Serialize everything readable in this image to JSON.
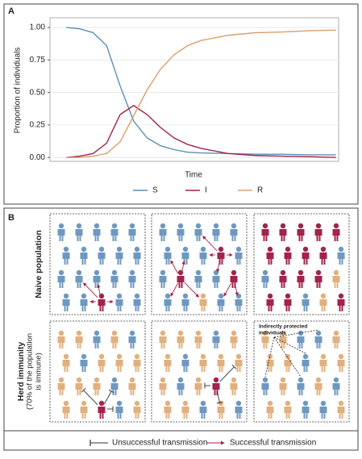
{
  "panels": {
    "a": "A",
    "b": "B"
  },
  "chart_data": {
    "type": "line",
    "ylabel": "Proportion of individuals",
    "xlabel": "Time",
    "x": [
      0,
      5,
      10,
      15,
      20,
      25,
      30,
      35,
      40,
      45,
      50,
      60,
      70,
      80,
      90,
      100
    ],
    "xlim": [
      -6,
      101
    ],
    "ylim": [
      -0.03,
      1.075
    ],
    "yticks": [
      {
        "value": 0,
        "label": "0.00"
      },
      {
        "value": 0.25,
        "label": "0.25"
      },
      {
        "value": 0.5,
        "label": "0.50"
      },
      {
        "value": 0.75,
        "label": "0.75"
      },
      {
        "value": 1,
        "label": "1.00"
      }
    ],
    "grid": true,
    "series": [
      {
        "name": "S",
        "color": "#5b8db8",
        "values": [
          1.0,
          0.99,
          0.96,
          0.86,
          0.55,
          0.28,
          0.15,
          0.09,
          0.06,
          0.04,
          0.035,
          0.03,
          0.025,
          0.025,
          0.02,
          0.02
        ]
      },
      {
        "name": "I",
        "color": "#a3234a",
        "values": [
          0.0,
          0.01,
          0.03,
          0.11,
          0.33,
          0.4,
          0.33,
          0.23,
          0.15,
          0.1,
          0.07,
          0.03,
          0.015,
          0.01,
          0.005,
          0.0
        ]
      },
      {
        "name": "R",
        "color": "#d9a06a",
        "values": [
          0.0,
          0.0,
          0.01,
          0.03,
          0.12,
          0.32,
          0.52,
          0.68,
          0.79,
          0.86,
          0.9,
          0.94,
          0.96,
          0.965,
          0.975,
          0.98
        ]
      }
    ]
  },
  "diagram": {
    "row_labels": [
      {
        "lines": [
          "Naive population"
        ]
      },
      {
        "lines": [
          "Herd immunity",
          "(70% of the population",
          "is immune)"
        ]
      }
    ],
    "annotation": [
      "Indirectly protected",
      "individuals"
    ],
    "legend": [
      "Unsuccessful transmission",
      "Successful transmission"
    ]
  }
}
